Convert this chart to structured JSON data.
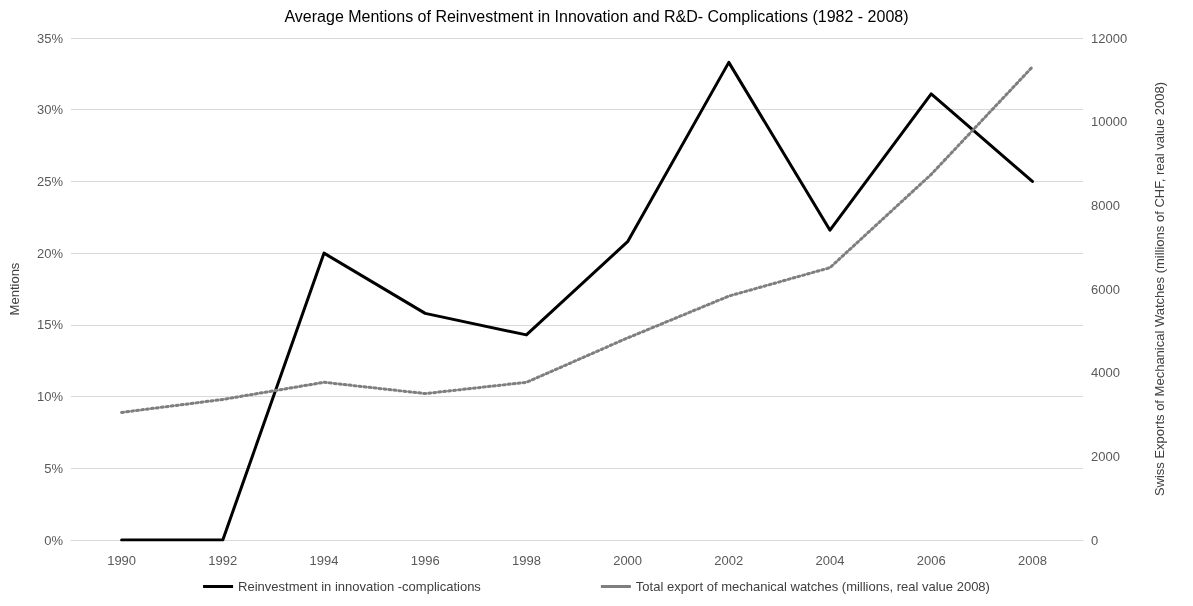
{
  "chart_data": {
    "type": "line",
    "title": "Average Mentions of Reinvestment in Innovation and R&D- Complications (1982 - 2008)",
    "ylabel": "Mentions",
    "y2label": "Swiss Exports of Mechanical Watches (millions of CHF, real value 2008)",
    "categories": [
      "1990",
      "1992",
      "1994",
      "1996",
      "1998",
      "2000",
      "2002",
      "2004",
      "2006",
      "2008"
    ],
    "series": [
      {
        "name": "Reinvestment in innovation -complications",
        "color": "#000000",
        "line_style": "solid",
        "values": [
          0,
          0,
          20,
          15.8,
          14.3,
          20.8,
          33.3,
          21.6,
          31.1,
          25
        ]
      },
      {
        "name": "Total export of mechanical watches (millions, real value 2008)",
        "color": "#7f7f7f",
        "line_style": "dotted",
        "axis": "y2",
        "values": [
          3050,
          3360,
          3770,
          3500,
          3770,
          4830,
          5830,
          6510,
          8740,
          11310
        ]
      }
    ],
    "ylim": [
      0,
      35
    ],
    "yticks": [
      {
        "value": 0,
        "label": "0%"
      },
      {
        "value": 5,
        "label": "5%"
      },
      {
        "value": 10,
        "label": "10%"
      },
      {
        "value": 15,
        "label": "15%"
      },
      {
        "value": 20,
        "label": "20%"
      },
      {
        "value": 25,
        "label": "25%"
      },
      {
        "value": 30,
        "label": "30%"
      },
      {
        "value": 35,
        "label": "35%"
      }
    ],
    "y2lim": [
      0,
      12000
    ],
    "y2ticks": [
      0,
      2000,
      4000,
      6000,
      8000,
      10000,
      12000
    ],
    "grid": "y",
    "legend": "bottom",
    "marker": "none"
  }
}
